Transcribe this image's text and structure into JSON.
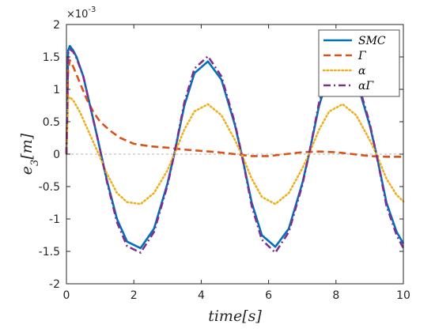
{
  "chart_data": {
    "type": "line",
    "xlabel": "time[s]",
    "ylabel": "e3[m]",
    "ylabel_main": "e",
    "ylabel_sub": "3",
    "ylabel_unit": "[m]",
    "y_exponent_label": "×10",
    "y_exponent_power": "-3",
    "xlim": [
      0,
      10
    ],
    "ylim": [
      -2,
      2
    ],
    "y_scale": 0.001,
    "x_ticks": [
      0,
      2,
      4,
      6,
      8,
      10
    ],
    "x_tick_labels": [
      "0",
      "2",
      "4",
      "6",
      "8",
      "10"
    ],
    "y_ticks": [
      -2,
      -1.5,
      -1,
      -0.5,
      0,
      0.5,
      1,
      1.5,
      2
    ],
    "y_tick_labels": [
      "-2",
      "-1.5",
      "-1",
      "-0.5",
      "0",
      "0.5",
      "1",
      "1.5",
      "2"
    ],
    "zero_line": true,
    "grid": false,
    "legend_position": "top-right",
    "series": [
      {
        "name": "SMC",
        "color": "#0072BD",
        "style": "solid",
        "x": [
          0,
          0.05,
          0.1,
          0.2,
          0.3,
          0.5,
          0.7,
          0.9,
          1.2,
          1.5,
          1.8,
          2.2,
          2.6,
          3.0,
          3.2,
          3.5,
          3.8,
          4.2,
          4.6,
          5.0,
          5.2,
          5.5,
          5.8,
          6.2,
          6.6,
          7.0,
          7.2,
          7.5,
          7.8,
          8.2,
          8.6,
          9.0,
          9.2,
          9.5,
          9.8,
          10.0
        ],
        "values": [
          0,
          1.6,
          1.67,
          1.6,
          1.5,
          1.2,
          0.75,
          0.3,
          -0.4,
          -1.0,
          -1.35,
          -1.45,
          -1.15,
          -0.45,
          0,
          0.75,
          1.25,
          1.43,
          1.15,
          0.45,
          0,
          -0.75,
          -1.25,
          -1.43,
          -1.15,
          -0.45,
          0,
          0.75,
          1.25,
          1.43,
          1.15,
          0.45,
          0,
          -0.75,
          -1.2,
          -1.38
        ]
      },
      {
        "name": "Γ",
        "color": "#D95319",
        "style": "dashed",
        "x": [
          0,
          0.05,
          0.1,
          0.2,
          0.4,
          0.6,
          0.8,
          1.0,
          1.3,
          1.6,
          2.0,
          2.5,
          3.0,
          3.5,
          4.0,
          4.5,
          5.0,
          5.5,
          6.0,
          6.5,
          7.0,
          7.5,
          8.0,
          8.5,
          9.0,
          9.5,
          10.0
        ],
        "values": [
          0,
          1.3,
          1.45,
          1.35,
          1.1,
          0.85,
          0.65,
          0.5,
          0.36,
          0.25,
          0.16,
          0.12,
          0.1,
          0.07,
          0.05,
          0.03,
          0.0,
          -0.03,
          -0.03,
          0.0,
          0.03,
          0.04,
          0.03,
          0.0,
          -0.03,
          -0.04,
          -0.04
        ]
      },
      {
        "name": "α",
        "color": "#EDB120",
        "style": "dotted",
        "x": [
          0,
          0.05,
          0.1,
          0.2,
          0.4,
          0.7,
          1.0,
          1.2,
          1.5,
          1.8,
          2.2,
          2.6,
          3.0,
          3.2,
          3.5,
          3.8,
          4.2,
          4.6,
          5.0,
          5.2,
          5.5,
          5.8,
          6.2,
          6.6,
          7.0,
          7.2,
          7.5,
          7.8,
          8.2,
          8.6,
          9.0,
          9.2,
          9.5,
          9.8,
          10.0
        ],
        "values": [
          0,
          0.85,
          0.88,
          0.83,
          0.65,
          0.3,
          -0.05,
          -0.3,
          -0.6,
          -0.74,
          -0.77,
          -0.6,
          -0.25,
          0,
          0.38,
          0.66,
          0.77,
          0.6,
          0.22,
          0,
          -0.38,
          -0.66,
          -0.77,
          -0.6,
          -0.22,
          0,
          0.38,
          0.66,
          0.77,
          0.6,
          0.22,
          0,
          -0.38,
          -0.63,
          -0.73
        ]
      },
      {
        "name": "αΓ",
        "color": "#7E2F8E",
        "style": "dashdot",
        "x": [
          0,
          0.05,
          0.1,
          0.2,
          0.3,
          0.5,
          0.7,
          0.9,
          1.2,
          1.5,
          1.8,
          2.2,
          2.6,
          3.0,
          3.2,
          3.5,
          3.8,
          4.2,
          4.6,
          5.0,
          5.2,
          5.5,
          5.8,
          6.2,
          6.6,
          7.0,
          7.2,
          7.5,
          7.8,
          8.2,
          8.6,
          9.0,
          9.2,
          9.5,
          9.8,
          10.0
        ],
        "values": [
          0,
          1.55,
          1.62,
          1.58,
          1.48,
          1.2,
          0.75,
          0.3,
          -0.42,
          -1.05,
          -1.42,
          -1.52,
          -1.2,
          -0.48,
          0,
          0.8,
          1.32,
          1.51,
          1.2,
          0.48,
          0,
          -0.8,
          -1.32,
          -1.52,
          -1.2,
          -0.48,
          0,
          0.8,
          1.32,
          1.51,
          1.2,
          0.48,
          0,
          -0.8,
          -1.25,
          -1.45
        ]
      }
    ]
  }
}
